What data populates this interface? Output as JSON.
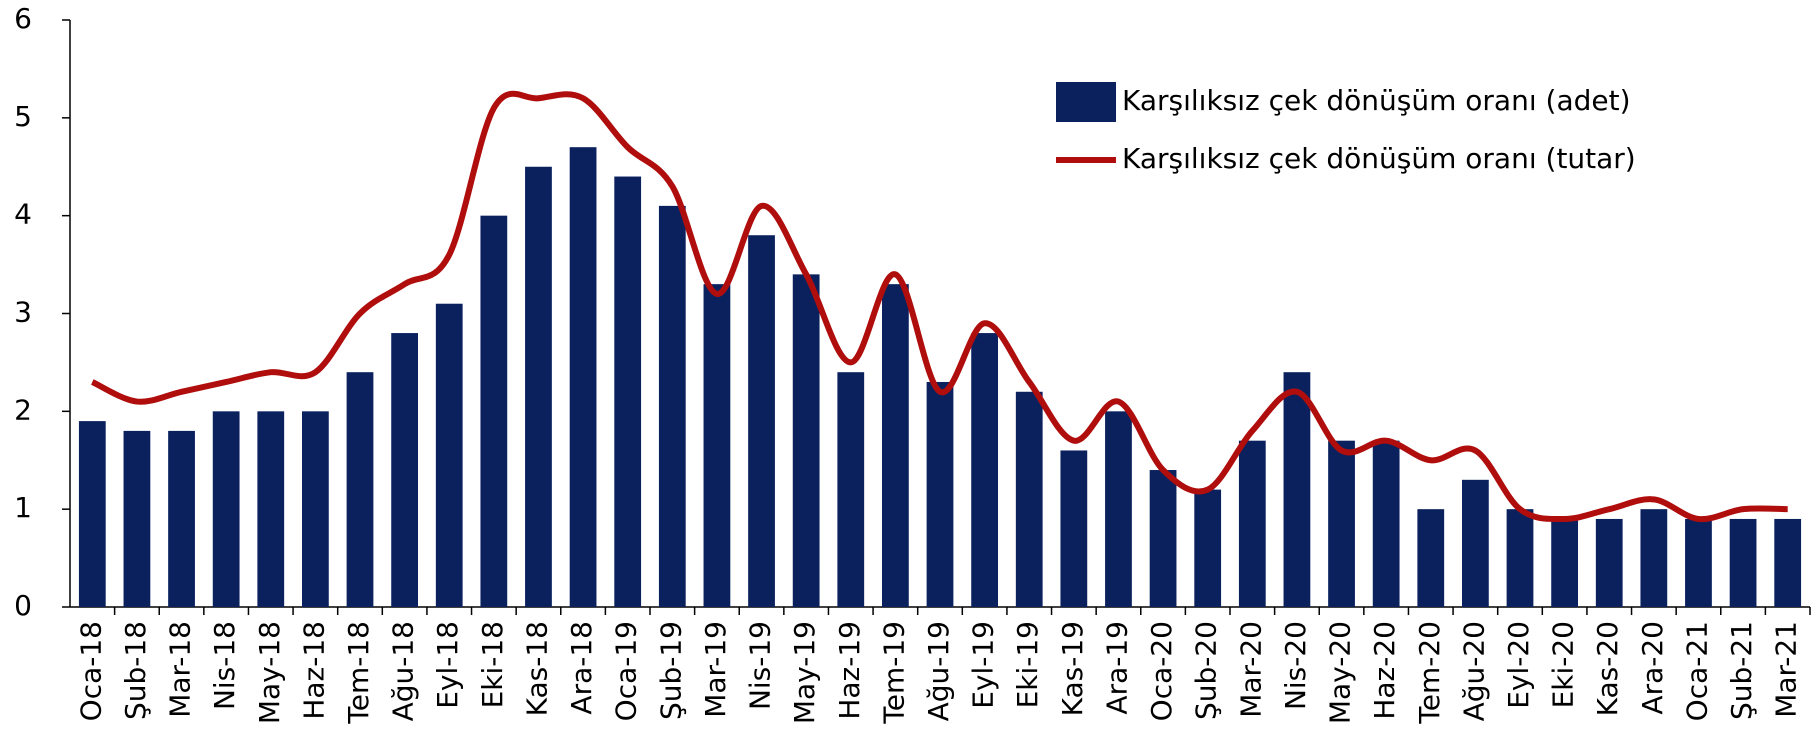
{
  "chart_data": {
    "type": "bar_line",
    "categories": [
      "Oca-18",
      "Şub-18",
      "Mar-18",
      "Nis-18",
      "May-18",
      "Haz-18",
      "Tem-18",
      "Ağu-18",
      "Eyl-18",
      "Eki-18",
      "Kas-18",
      "Ara-18",
      "Oca-19",
      "Şub-19",
      "Mar-19",
      "Nis-19",
      "May-19",
      "Haz-19",
      "Tem-19",
      "Ağu-19",
      "Eyl-19",
      "Eki-19",
      "Kas-19",
      "Ara-19",
      "Oca-20",
      "Şub-20",
      "Mar-20",
      "Nis-20",
      "May-20",
      "Haz-20",
      "Tem-20",
      "Ağu-20",
      "Eyl-20",
      "Eki-20",
      "Kas-20",
      "Ara-20",
      "Oca-21",
      "Şub-21",
      "Mar-21"
    ],
    "series": [
      {
        "name": "Karşılıksız çek dönüşüm oranı (adet)",
        "type": "bar",
        "color": "#0a215e",
        "values": [
          1.9,
          1.8,
          1.8,
          2.0,
          2.0,
          2.0,
          2.4,
          2.8,
          3.1,
          4.0,
          4.5,
          4.7,
          4.4,
          4.1,
          3.3,
          3.8,
          3.4,
          2.4,
          3.3,
          2.3,
          2.8,
          2.2,
          1.6,
          2.0,
          1.4,
          1.2,
          1.7,
          2.4,
          1.7,
          1.7,
          1.0,
          1.3,
          1.0,
          0.9,
          0.9,
          1.0,
          0.9,
          0.9,
          0.9
        ]
      },
      {
        "name": "Karşılıksız çek dönüşüm oranı (tutar)",
        "type": "line",
        "color": "#b00d0d",
        "values": [
          2.3,
          2.1,
          2.2,
          2.3,
          2.4,
          2.4,
          3.0,
          3.3,
          3.6,
          5.1,
          5.2,
          5.2,
          4.7,
          4.3,
          3.2,
          4.1,
          3.4,
          2.5,
          3.4,
          2.2,
          2.9,
          2.3,
          1.7,
          2.1,
          1.4,
          1.2,
          1.8,
          2.2,
          1.6,
          1.7,
          1.5,
          1.6,
          1.0,
          0.9,
          1.0,
          1.1,
          0.9,
          1.0,
          1.0
        ]
      }
    ],
    "ylim": [
      0,
      6
    ],
    "yticks": [
      0,
      1,
      2,
      3,
      4,
      5,
      6
    ],
    "legend": "upper right"
  }
}
